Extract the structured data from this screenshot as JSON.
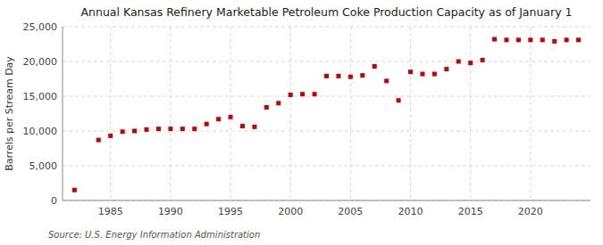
{
  "chart_data": {
    "type": "scatter",
    "title": "Annual Kansas Refinery Marketable Petroleum Coke Production Capacity as of January 1",
    "y_label": "Barrels per Stream Day",
    "source": "Source: U.S. Energy Information Administration",
    "x": [
      1982,
      1984,
      1985,
      1986,
      1987,
      1988,
      1989,
      1990,
      1991,
      1992,
      1993,
      1994,
      1995,
      1996,
      1997,
      1998,
      1999,
      2000,
      2001,
      2002,
      2003,
      2004,
      2005,
      2006,
      2007,
      2008,
      2009,
      2010,
      2011,
      2012,
      2013,
      2014,
      2015,
      2016,
      2017,
      2018,
      2019,
      2020,
      2021,
      2022,
      2023,
      2024
    ],
    "values": [
      1500,
      8700,
      9300,
      9900,
      10000,
      10200,
      10300,
      10300,
      10300,
      10300,
      11000,
      11700,
      12000,
      10700,
      10600,
      13400,
      14000,
      15200,
      15300,
      15300,
      17900,
      17900,
      17800,
      18000,
      19300,
      17200,
      14400,
      18500,
      18200,
      18200,
      18900,
      20000,
      19800,
      20200,
      23200,
      23100,
      23100,
      23100,
      23100,
      22900,
      23100,
      23100
    ],
    "color": "#cc0000",
    "marker": "square",
    "xlim": [
      1981,
      2025
    ],
    "ylim": [
      0,
      25000
    ],
    "xticks": [
      1985,
      1990,
      1995,
      2000,
      2005,
      2010,
      2015,
      2020
    ],
    "yticks": [
      0,
      {
        "value": 5000,
        "label": "5,000"
      },
      {
        "value": 10000,
        "label": "10,000"
      },
      {
        "value": 15000,
        "label": "15,000"
      },
      {
        "value": 20000,
        "label": "20,000"
      },
      {
        "value": 25000,
        "label": "25,000"
      }
    ],
    "grid": true
  }
}
